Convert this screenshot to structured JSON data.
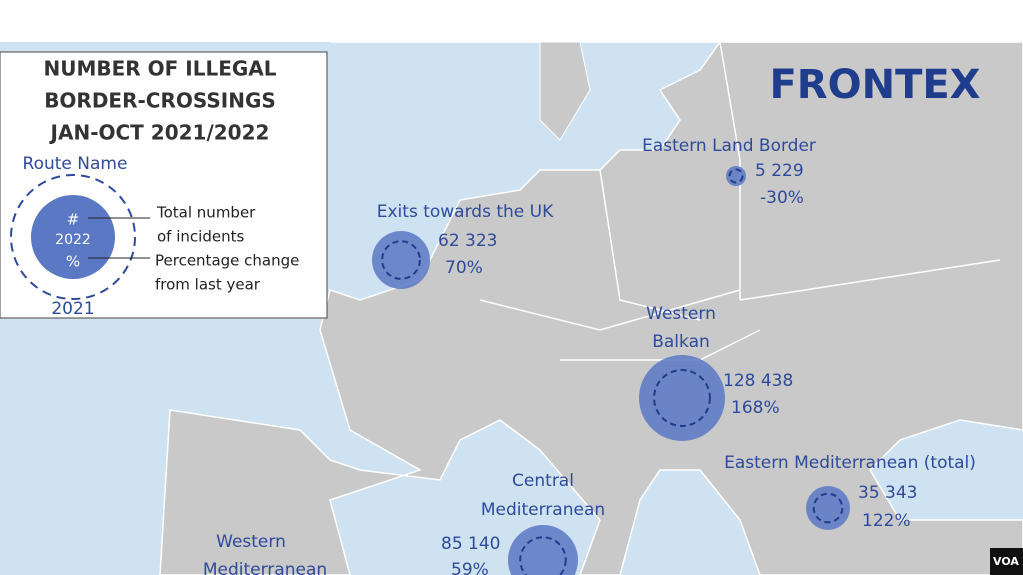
{
  "legend": {
    "title": [
      "NUMBER OF ILLEGAL",
      "BORDER-CROSSINGS",
      "JAN-OCT 2021/2022"
    ],
    "route_name": "Route Name",
    "inner": [
      "#",
      "2022",
      "%"
    ],
    "outer": "2021",
    "total": [
      "Total number",
      "of incidents"
    ],
    "change": [
      "Percentage change",
      "from last year"
    ]
  },
  "logo": "FRONTEX",
  "routes": [
    {
      "name": [
        "Eastern Land Border"
      ],
      "count": "5 229",
      "change": "-30%"
    },
    {
      "name": [
        "Exits towards the UK"
      ],
      "count": "62 323",
      "change": "70%"
    },
    {
      "name": [
        "Western",
        "Balkan"
      ],
      "count": "128 438",
      "change": "168%"
    },
    {
      "name": [
        "Eastern Mediterranean (total)"
      ],
      "count": "35 343",
      "change": "122%"
    },
    {
      "name": [
        "Central",
        "Mediterranean"
      ],
      "count": "85 140",
      "change": "59%"
    },
    {
      "name": [
        "Western",
        "Mediterranean"
      ]
    }
  ],
  "source": "VOA"
}
